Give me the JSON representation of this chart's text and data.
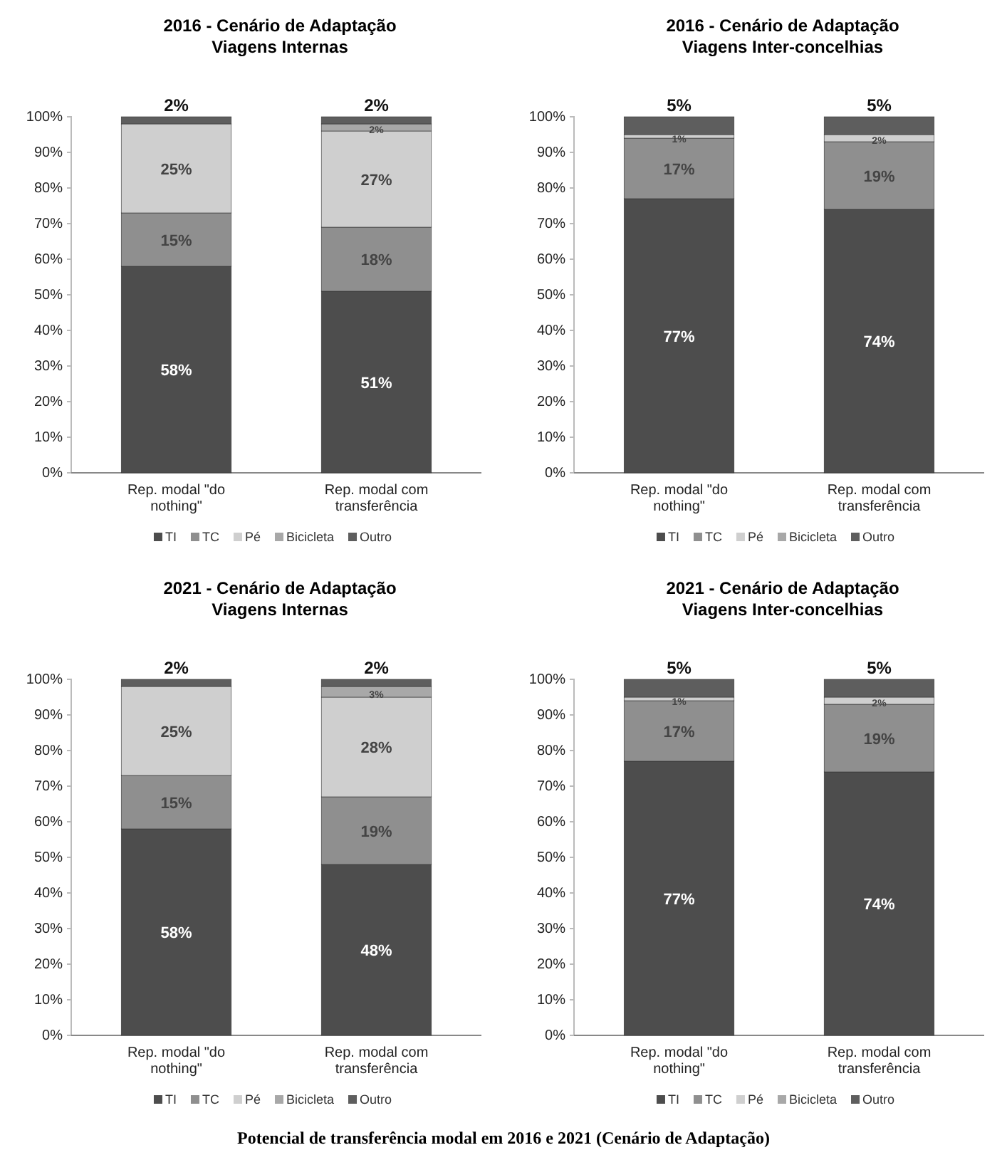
{
  "chart_data": [
    {
      "type": "bar",
      "title": "2016 - Cenário de Adaptação",
      "subtitle": "Viagens Internas",
      "categories": [
        "Rep. modal \"do nothing\"",
        "Rep. modal com transferência"
      ],
      "stacked": true,
      "ylim": [
        0,
        100
      ],
      "yticks": [
        {
          "value": 0,
          "label": "0%"
        },
        {
          "value": 10,
          "label": "10%"
        },
        {
          "value": 20,
          "label": "20%"
        },
        {
          "value": 30,
          "label": "30%"
        },
        {
          "value": 40,
          "label": "40%"
        },
        {
          "value": 50,
          "label": "50%"
        },
        {
          "value": 60,
          "label": "60%"
        },
        {
          "value": 70,
          "label": "70%"
        },
        {
          "value": 80,
          "label": "80%"
        },
        {
          "value": 90,
          "label": "90%"
        },
        {
          "value": 100,
          "label": "100%"
        }
      ],
      "legend": "bottom",
      "series": [
        {
          "name": "TI",
          "color": "#4d4d4d",
          "values": [
            58,
            51
          ],
          "value_labels": [
            "58%",
            "51%"
          ]
        },
        {
          "name": "TC",
          "color": "#8f8f8f",
          "values": [
            15,
            18
          ],
          "value_labels": [
            "15%",
            "18%"
          ]
        },
        {
          "name": "Pé",
          "color": "#cfcfcf",
          "values": [
            25,
            27
          ],
          "value_labels": [
            "25%",
            "27%"
          ]
        },
        {
          "name": "Bicicleta",
          "color": "#a8a8a8",
          "values": [
            0,
            2
          ],
          "value_labels": [
            null,
            "2%"
          ]
        },
        {
          "name": "Outro",
          "color": "#5e5e5e",
          "values": [
            2,
            2
          ],
          "value_labels": [
            "2%",
            "2%"
          ]
        }
      ]
    },
    {
      "type": "bar",
      "title": "2016 - Cenário de Adaptação",
      "subtitle": "Viagens Inter-concelhias",
      "categories": [
        "Rep. modal \"do nothing\"",
        "Rep. modal com transferência"
      ],
      "stacked": true,
      "ylim": [
        0,
        100
      ],
      "yticks": [
        {
          "value": 0,
          "label": "0%"
        },
        {
          "value": 10,
          "label": "10%"
        },
        {
          "value": 20,
          "label": "20%"
        },
        {
          "value": 30,
          "label": "30%"
        },
        {
          "value": 40,
          "label": "40%"
        },
        {
          "value": 50,
          "label": "50%"
        },
        {
          "value": 60,
          "label": "60%"
        },
        {
          "value": 70,
          "label": "70%"
        },
        {
          "value": 80,
          "label": "80%"
        },
        {
          "value": 90,
          "label": "90%"
        },
        {
          "value": 100,
          "label": "100%"
        }
      ],
      "legend": "bottom",
      "series": [
        {
          "name": "TI",
          "color": "#4d4d4d",
          "values": [
            77,
            74
          ],
          "value_labels": [
            "77%",
            "74%"
          ]
        },
        {
          "name": "TC",
          "color": "#8f8f8f",
          "values": [
            17,
            19
          ],
          "value_labels": [
            "17%",
            "19%"
          ]
        },
        {
          "name": "Pé",
          "color": "#cfcfcf",
          "values": [
            1,
            2
          ],
          "value_labels": [
            "1%",
            "2%"
          ]
        },
        {
          "name": "Bicicleta",
          "color": "#a8a8a8",
          "values": [
            0,
            0
          ],
          "value_labels": [
            null,
            null
          ]
        },
        {
          "name": "Outro",
          "color": "#5e5e5e",
          "values": [
            5,
            5
          ],
          "value_labels": [
            "5%",
            "5%"
          ]
        }
      ]
    },
    {
      "type": "bar",
      "title": "2021 - Cenário de Adaptação",
      "subtitle": "Viagens Internas",
      "categories": [
        "Rep. modal \"do nothing\"",
        "Rep. modal com transferência"
      ],
      "stacked": true,
      "ylim": [
        0,
        100
      ],
      "yticks": [
        {
          "value": 0,
          "label": "0%"
        },
        {
          "value": 10,
          "label": "10%"
        },
        {
          "value": 20,
          "label": "20%"
        },
        {
          "value": 30,
          "label": "30%"
        },
        {
          "value": 40,
          "label": "40%"
        },
        {
          "value": 50,
          "label": "50%"
        },
        {
          "value": 60,
          "label": "60%"
        },
        {
          "value": 70,
          "label": "70%"
        },
        {
          "value": 80,
          "label": "80%"
        },
        {
          "value": 90,
          "label": "90%"
        },
        {
          "value": 100,
          "label": "100%"
        }
      ],
      "legend": "bottom",
      "series": [
        {
          "name": "TI",
          "color": "#4d4d4d",
          "values": [
            58,
            48
          ],
          "value_labels": [
            "58%",
            "48%"
          ]
        },
        {
          "name": "TC",
          "color": "#8f8f8f",
          "values": [
            15,
            19
          ],
          "value_labels": [
            "15%",
            "19%"
          ]
        },
        {
          "name": "Pé",
          "color": "#cfcfcf",
          "values": [
            25,
            28
          ],
          "value_labels": [
            "25%",
            "28%"
          ]
        },
        {
          "name": "Bicicleta",
          "color": "#a8a8a8",
          "values": [
            0,
            3
          ],
          "value_labels": [
            null,
            "3%"
          ]
        },
        {
          "name": "Outro",
          "color": "#5e5e5e",
          "values": [
            2,
            2
          ],
          "value_labels": [
            "2%",
            "2%"
          ]
        }
      ]
    },
    {
      "type": "bar",
      "title": "2021 - Cenário de Adaptação",
      "subtitle": "Viagens Inter-concelhias",
      "categories": [
        "Rep. modal \"do nothing\"",
        "Rep. modal com transferência"
      ],
      "stacked": true,
      "ylim": [
        0,
        100
      ],
      "yticks": [
        {
          "value": 0,
          "label": "0%"
        },
        {
          "value": 10,
          "label": "10%"
        },
        {
          "value": 20,
          "label": "20%"
        },
        {
          "value": 30,
          "label": "30%"
        },
        {
          "value": 40,
          "label": "40%"
        },
        {
          "value": 50,
          "label": "50%"
        },
        {
          "value": 60,
          "label": "60%"
        },
        {
          "value": 70,
          "label": "70%"
        },
        {
          "value": 80,
          "label": "80%"
        },
        {
          "value": 90,
          "label": "90%"
        },
        {
          "value": 100,
          "label": "100%"
        }
      ],
      "legend": "bottom",
      "annotations": [
        "Potencial de transferência modal em 2016 e 2021 (Cenário de Adaptação)"
      ],
      "series": [
        {
          "name": "TI",
          "color": "#4d4d4d",
          "values": [
            77,
            74
          ],
          "value_labels": [
            "77%",
            "74%"
          ]
        },
        {
          "name": "TC",
          "color": "#8f8f8f",
          "values": [
            17,
            19
          ],
          "value_labels": [
            "17%",
            "19%"
          ]
        },
        {
          "name": "Pé",
          "color": "#cfcfcf",
          "values": [
            1,
            2
          ],
          "value_labels": [
            "1%",
            "2%"
          ]
        },
        {
          "name": "Bicicleta",
          "color": "#a8a8a8",
          "values": [
            0,
            0
          ],
          "value_labels": [
            null,
            null
          ]
        },
        {
          "name": "Outro",
          "color": "#5e5e5e",
          "values": [
            5,
            5
          ],
          "value_labels": [
            "5%",
            "5%"
          ]
        }
      ]
    }
  ]
}
